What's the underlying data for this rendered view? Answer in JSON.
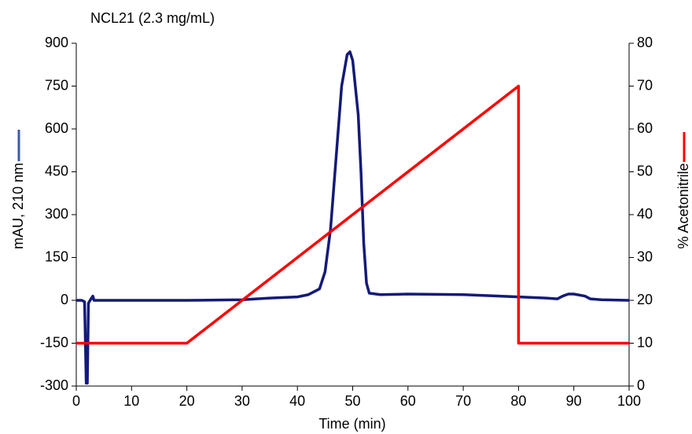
{
  "chart_data": {
    "type": "line",
    "title": "NCL21 (2.3 mg/mL)",
    "x_label": "Time (min)",
    "y_label": "mAU, 210 nm",
    "y2_label": "% Acetonitrile",
    "xlim": [
      0,
      100
    ],
    "xticks": [
      0,
      10,
      20,
      30,
      40,
      50,
      60,
      70,
      80,
      90,
      100
    ],
    "ylim": [
      -300,
      900
    ],
    "yticks": [
      -300,
      -150,
      0,
      150,
      300,
      450,
      600,
      750,
      900
    ],
    "y2lim": [
      0,
      80
    ],
    "y2ticks": [
      0,
      10,
      20,
      30,
      40,
      50,
      60,
      70,
      80
    ],
    "grid": false,
    "series": [
      {
        "name": "mAU, 210 nm",
        "color": "#141a78",
        "x": [
          0,
          1,
          1.5,
          1.8,
          2,
          2.2,
          2.5,
          3,
          3.2,
          5,
          10,
          20,
          30,
          35,
          40,
          42,
          44,
          45,
          46,
          47,
          48,
          49,
          49.5,
          50,
          51,
          51.5,
          52,
          52.5,
          53,
          55,
          60,
          70,
          80,
          85,
          87,
          88,
          89,
          90,
          92,
          93,
          95,
          100
        ],
        "values": [
          0,
          0,
          -5,
          -290,
          -290,
          -10,
          0,
          15,
          0,
          0,
          0,
          0,
          2,
          8,
          12,
          20,
          40,
          100,
          250,
          500,
          750,
          860,
          870,
          840,
          650,
          450,
          200,
          60,
          25,
          20,
          22,
          20,
          12,
          8,
          5,
          15,
          22,
          22,
          15,
          5,
          2,
          0
        ]
      },
      {
        "name": "% Acetonitrile",
        "color": "#ff0000",
        "axis": "y2",
        "x": [
          0,
          20,
          80,
          80,
          100
        ],
        "values": [
          10,
          10,
          70,
          10,
          10
        ]
      }
    ]
  }
}
